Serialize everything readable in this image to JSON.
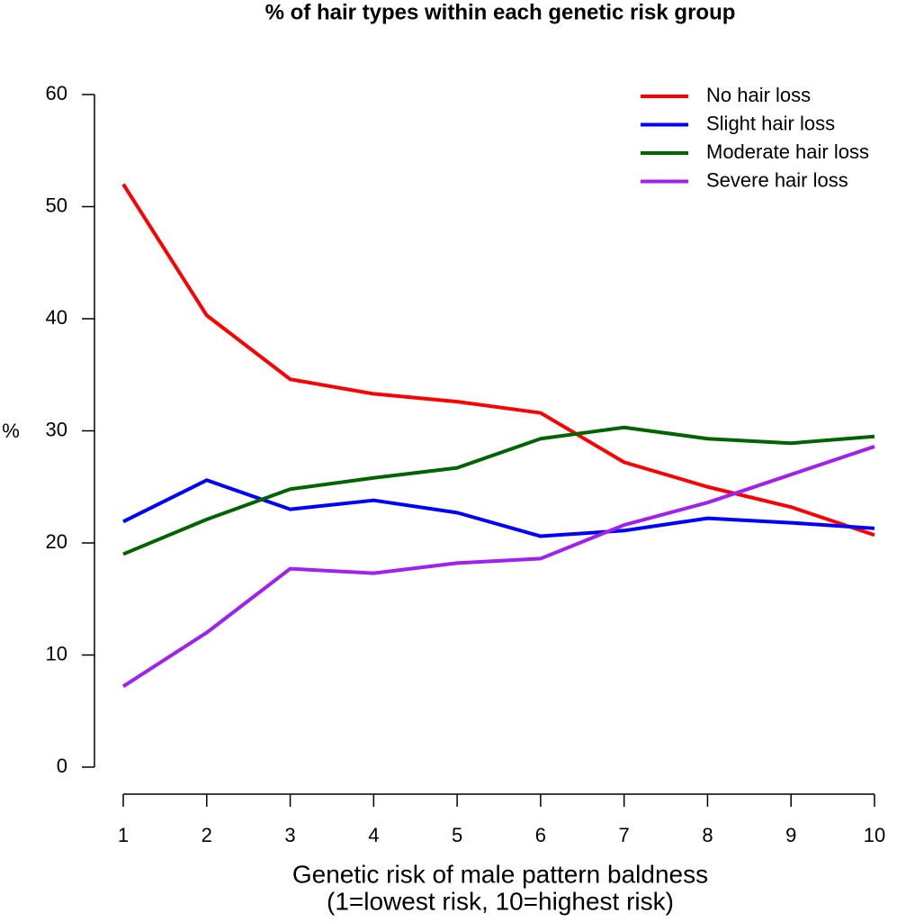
{
  "chart_data": {
    "type": "line",
    "title": "% of hair types within each genetic risk group",
    "x_label": [
      "Genetic risk of male pattern baldness",
      "(1=lowest risk, 10=highest risk)"
    ],
    "y_label": "%",
    "x": [
      1,
      2,
      3,
      4,
      5,
      6,
      7,
      8,
      9,
      10
    ],
    "series": [
      {
        "name": "No hair loss",
        "color": "#ff0000",
        "values": [
          52.0,
          40.3,
          34.6,
          33.3,
          32.6,
          31.6,
          27.2,
          25.0,
          23.2,
          20.7
        ]
      },
      {
        "name": "Slight hair loss",
        "color": "#0000ff",
        "values": [
          21.9,
          25.6,
          23.0,
          23.8,
          22.7,
          20.6,
          21.1,
          22.2,
          21.8,
          21.3
        ]
      },
      {
        "name": "Moderate hair loss",
        "color": "#006400",
        "values": [
          19.0,
          22.1,
          24.8,
          25.8,
          26.7,
          29.3,
          30.3,
          29.3,
          28.9,
          29.5
        ]
      },
      {
        "name": "Severe hair loss",
        "color": "#a020f0",
        "values": [
          7.2,
          12.0,
          17.7,
          17.3,
          18.2,
          18.6,
          21.6,
          23.6,
          26.1,
          28.6
        ]
      }
    ],
    "xlim": [
      1,
      10
    ],
    "xticks": [
      1,
      2,
      3,
      4,
      5,
      6,
      7,
      8,
      9,
      10
    ],
    "ylim": [
      0,
      60
    ],
    "yticks": [
      0,
      10,
      20,
      30,
      40,
      50,
      60
    ],
    "grid": false,
    "legend": "top-right"
  }
}
